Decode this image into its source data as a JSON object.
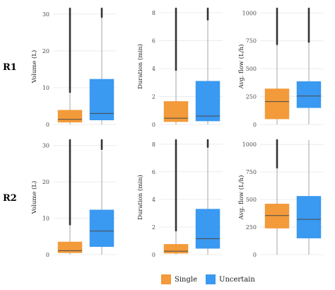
{
  "colors": {
    "single": "#f39a3a",
    "uncertain": "#3a99f0",
    "grid": "#ececec",
    "whisker": "#a6a6a6",
    "median": "#4a4a4a"
  },
  "legend": {
    "items": [
      {
        "label": "Single",
        "key": "single"
      },
      {
        "label": "Uncertain",
        "key": "uncertain"
      }
    ]
  },
  "chart_data": [
    {
      "type": "box",
      "row": "R1",
      "ylabel": "Volume (L)",
      "ylim": [
        0,
        31.5
      ],
      "yticks": [
        0,
        10,
        20,
        30
      ],
      "categories": [
        "Single",
        "Uncertain"
      ],
      "boxes": [
        {
          "q1": 0.6,
          "median": 1.4,
          "q3": 3.9,
          "whisker_low": 0,
          "whisker_high": 8.5,
          "outliers_from": 8.8,
          "outliers_to": 31.5
        },
        {
          "q1": 1.2,
          "median": 3.0,
          "q3": 12.3,
          "whisker_low": 0,
          "whisker_high": 29.0,
          "outliers_from": 29.2,
          "outliers_to": 31.5
        }
      ]
    },
    {
      "type": "box",
      "row": "R1",
      "ylabel": "Duration (min)",
      "ylim": [
        0,
        8.3
      ],
      "yticks": [
        0,
        2,
        4,
        6,
        8
      ],
      "categories": [
        "Single",
        "Uncertain"
      ],
      "boxes": [
        {
          "q1": 0.2,
          "median": 0.45,
          "q3": 1.65,
          "whisker_low": 0,
          "whisker_high": 3.8,
          "outliers_from": 3.9,
          "outliers_to": 8.3
        },
        {
          "q1": 0.25,
          "median": 0.6,
          "q3": 3.1,
          "whisker_low": 0,
          "whisker_high": 7.4,
          "outliers_from": 7.5,
          "outliers_to": 8.3
        }
      ]
    },
    {
      "type": "box",
      "row": "R1",
      "ylabel": "Avg. flow (L/h)",
      "ylim": [
        0,
        1040
      ],
      "yticks": [
        0,
        250,
        500,
        750,
        1000
      ],
      "categories": [
        "Single",
        "Uncertain"
      ],
      "boxes": [
        {
          "q1": 50,
          "median": 205,
          "q3": 320,
          "whisker_low": 0,
          "whisker_high": 710,
          "outliers_from": 720,
          "outliers_to": 1040
        },
        {
          "q1": 150,
          "median": 255,
          "q3": 385,
          "whisker_low": 0,
          "whisker_high": 730,
          "outliers_from": 740,
          "outliers_to": 1040
        }
      ]
    },
    {
      "type": "box",
      "row": "R2",
      "ylabel": "Volume (L)",
      "ylim": [
        0,
        31.5
      ],
      "yticks": [
        0,
        10,
        20,
        30
      ],
      "categories": [
        "Single",
        "Uncertain"
      ],
      "boxes": [
        {
          "q1": 0.5,
          "median": 1.1,
          "q3": 3.5,
          "whisker_low": 0,
          "whisker_high": 8.0,
          "outliers_from": 8.3,
          "outliers_to": 31.5
        },
        {
          "q1": 2.2,
          "median": 6.5,
          "q3": 12.3,
          "whisker_low": 0,
          "whisker_high": 28.5,
          "outliers_from": 29.0,
          "outliers_to": 31.5
        }
      ]
    },
    {
      "type": "box",
      "row": "R2",
      "ylabel": "Duration (min)",
      "ylim": [
        0,
        8.3
      ],
      "yticks": [
        0,
        2,
        4,
        6,
        8
      ],
      "categories": [
        "Single",
        "Uncertain"
      ],
      "boxes": [
        {
          "q1": 0.1,
          "median": 0.25,
          "q3": 0.75,
          "whisker_low": 0,
          "whisker_high": 1.7,
          "outliers_from": 1.75,
          "outliers_to": 8.3
        },
        {
          "q1": 0.45,
          "median": 1.15,
          "q3": 3.3,
          "whisker_low": 0,
          "whisker_high": 7.7,
          "outliers_from": 7.8,
          "outliers_to": 8.3
        }
      ]
    },
    {
      "type": "box",
      "row": "R2",
      "ylabel": "Avg. flow (L/h)",
      "ylim": [
        0,
        1040
      ],
      "yticks": [
        0,
        250,
        500,
        750,
        1000
      ],
      "categories": [
        "Single",
        "Uncertain"
      ],
      "boxes": [
        {
          "q1": 240,
          "median": 355,
          "q3": 460,
          "whisker_low": 0,
          "whisker_high": 780,
          "outliers_from": 790,
          "outliers_to": 1040
        },
        {
          "q1": 150,
          "median": 320,
          "q3": 530,
          "whisker_low": 0,
          "whisker_high": 1040,
          "outliers_from": null,
          "outliers_to": null
        }
      ]
    }
  ]
}
